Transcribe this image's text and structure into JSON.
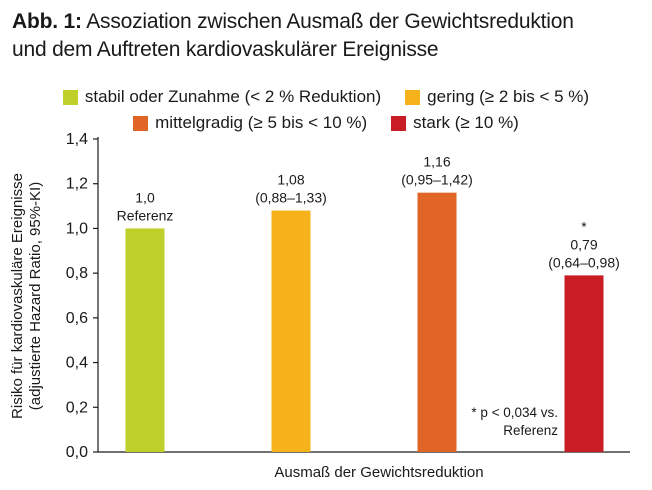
{
  "figure": {
    "label": "Abb. 1:",
    "title_line1": "Assoziation zwischen Ausmaß der Gewichtsreduktion",
    "title_line2": "und dem Auftreten kardiovaskulärer Ereignisse"
  },
  "legend": [
    {
      "label": "stabil oder Zunahme (< 2 % Reduktion)",
      "color": "#bfcf2a"
    },
    {
      "label": "gering (≥ 2 bis < 5 %)",
      "color": "#f5b21b"
    },
    {
      "label": "mittelgradig (≥ 5 bis < 10 %)",
      "color": "#e06526"
    },
    {
      "label": "stark (≥ 10 %)",
      "color": "#c81d25"
    }
  ],
  "chart_data": {
    "type": "bar",
    "categories": [
      "stabil oder Zunahme (< 2 % Reduktion)",
      "gering (≥ 2 bis < 5 %)",
      "mittelgradig (≥ 5 bis < 10 %)",
      "stark (≥ 10 %)"
    ],
    "values": [
      1.0,
      1.08,
      1.16,
      0.79
    ],
    "colors": [
      "#bfcf2a",
      "#f5b21b",
      "#e06526",
      "#c81d25"
    ],
    "data_labels": [
      [
        "1,0",
        "Referenz"
      ],
      [
        "1,08",
        "(0,88–1,33)"
      ],
      [
        "1,16",
        "(0,95–1,42)"
      ],
      [
        "*",
        "0,79",
        "(0,64–0,98)"
      ]
    ],
    "xlabel": "Ausmaß der Gewichtsreduktion",
    "ylabel_line1": "Risiko für kardiovaskuläre Ereignisse",
    "ylabel_line2": "(adjustierte Hazard Ratio, 95%-KI)",
    "ylim": [
      0,
      1.4
    ],
    "yticks": [
      0,
      0.2,
      0.4,
      0.6,
      0.8,
      1.0,
      1.2,
      1.4
    ],
    "ytick_labels": [
      "0,0",
      "0,2",
      "0,4",
      "0,6",
      "0,8",
      "1,0",
      "1,2",
      "1,4"
    ],
    "grid": false,
    "legend_position": "top",
    "footnote_line1": "* p < 0,034 vs.",
    "footnote_line2": "Referenz"
  }
}
